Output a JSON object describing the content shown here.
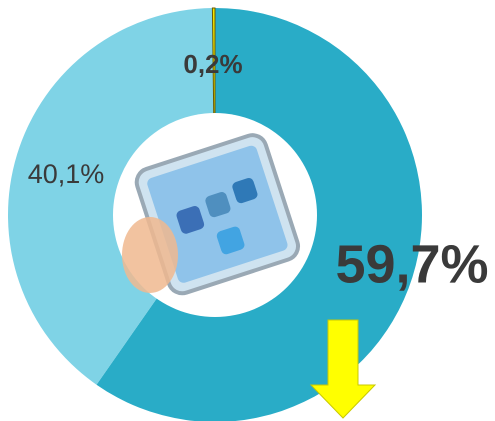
{
  "chart_data": {
    "type": "donut",
    "categories": [
      null,
      null,
      null
    ],
    "values": [
      59.7,
      40.1,
      0.2
    ],
    "value_labels": [
      "59,7%",
      "40,1%",
      "0,2%"
    ],
    "colors": [
      "#29acc7",
      "#7fd3e6",
      "#f2e600"
    ]
  }
}
